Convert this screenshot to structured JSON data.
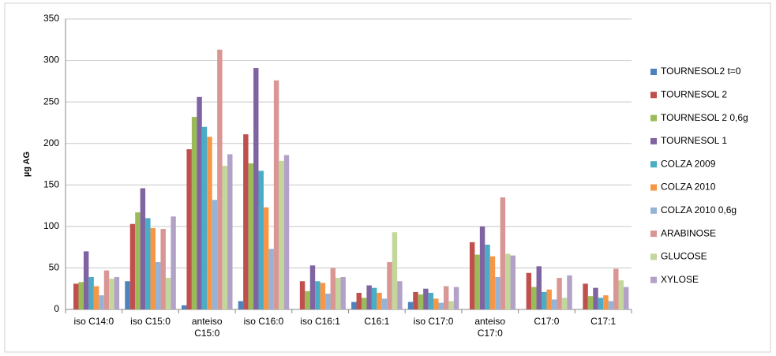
{
  "chart_data": {
    "type": "bar",
    "y_label": "µg AG",
    "categories": [
      "iso C14:0",
      "iso C15:0",
      "anteiso C15:0",
      "iso C16:0",
      "iso C16:1",
      "C16:1",
      "iso C17:0",
      "anteiso C17:0",
      "C17:0",
      "C17:1"
    ],
    "series": [
      {
        "name": "TOURNESOL2 t=0",
        "color": "#4F81BD",
        "values": [
          0,
          34,
          5,
          10,
          0,
          9,
          9,
          0,
          0,
          0
        ]
      },
      {
        "name": "TOURNESOL 2",
        "color": "#C0504D",
        "values": [
          31,
          103,
          193,
          211,
          34,
          20,
          21,
          81,
          44,
          31
        ]
      },
      {
        "name": "TOURNESOL 2 0,6g",
        "color": "#9BBB59",
        "values": [
          33,
          117,
          232,
          176,
          22,
          14,
          18,
          66,
          27,
          16
        ]
      },
      {
        "name": "TOURNESOL 1",
        "color": "#8064A2",
        "values": [
          70,
          146,
          256,
          291,
          53,
          29,
          25,
          100,
          52,
          26
        ]
      },
      {
        "name": "COLZA 2009",
        "color": "#4BACC6",
        "values": [
          39,
          110,
          220,
          167,
          34,
          26,
          20,
          78,
          21,
          14
        ]
      },
      {
        "name": "COLZA 2010",
        "color": "#F79646",
        "values": [
          28,
          98,
          208,
          123,
          32,
          20,
          13,
          64,
          24,
          17
        ]
      },
      {
        "name": "COLZA 2010 0,6g",
        "color": "#95B3D7",
        "values": [
          17,
          57,
          132,
          73,
          19,
          13,
          8,
          39,
          12,
          10
        ]
      },
      {
        "name": "ARABINOSE",
        "color": "#D99694",
        "values": [
          47,
          97,
          313,
          276,
          50,
          57,
          28,
          135,
          38,
          49
        ]
      },
      {
        "name": "GLUCOSE",
        "color": "#C3D69B",
        "values": [
          37,
          38,
          173,
          179,
          38,
          93,
          10,
          67,
          14,
          35
        ]
      },
      {
        "name": "XYLOSE",
        "color": "#B3A2C7",
        "values": [
          39,
          112,
          187,
          186,
          39,
          34,
          27,
          65,
          41,
          27
        ]
      }
    ],
    "ylim": [
      0,
      350
    ],
    "yticks": [
      0,
      50,
      100,
      150,
      200,
      250,
      300,
      350
    ],
    "grid": true
  }
}
